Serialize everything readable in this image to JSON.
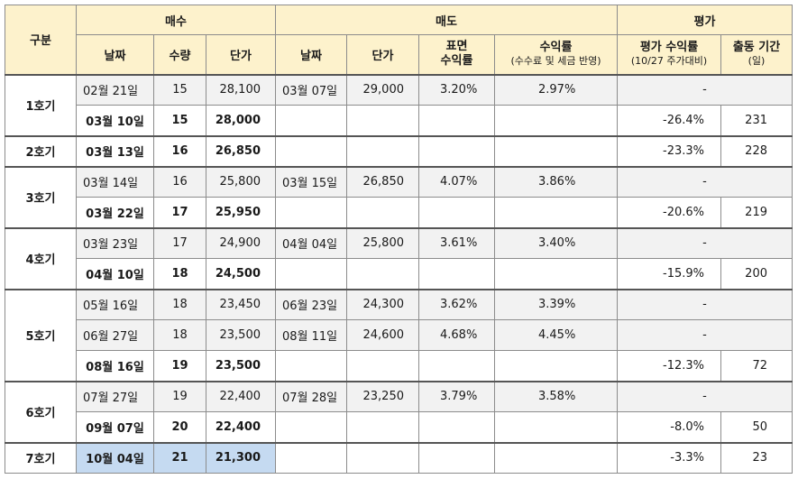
{
  "header": {
    "group": "구분",
    "buy": "매수",
    "sell": "매도",
    "eval": "평가",
    "buy_date": "날짜",
    "buy_qty": "수량",
    "buy_price": "단가",
    "sell_date": "날짜",
    "sell_price": "단가",
    "surface_line1": "표면",
    "surface_line2": "수익률",
    "return_line1": "수익률",
    "return_line2": "(수수료 및 세금 반영)",
    "eval_line1": "평가 수익률",
    "eval_line2": "(10/27 주가대비)",
    "period_line1": "출동 기간",
    "period_line2": "(일)"
  },
  "rows": [
    {
      "label": "1호기",
      "buy_date": "02월 21일",
      "qty": "15",
      "price": "28,100",
      "sell_date": "03월 07일",
      "sell_price": "29,000",
      "surface": "3.20%",
      "ret": "2.97%",
      "eval": "-",
      "period": ""
    },
    {
      "label": "",
      "buy_date": "03월 10일",
      "qty": "15",
      "price": "28,000",
      "sell_date": "",
      "sell_price": "",
      "surface": "",
      "ret": "",
      "eval": "-26.4%",
      "period": "231"
    },
    {
      "label": "2호기",
      "buy_date": "03월 13일",
      "qty": "16",
      "price": "26,850",
      "sell_date": "",
      "sell_price": "",
      "surface": "",
      "ret": "",
      "eval": "-23.3%",
      "period": "228"
    },
    {
      "label": "3호기",
      "buy_date": "03월 14일",
      "qty": "16",
      "price": "25,800",
      "sell_date": "03월 15일",
      "sell_price": "26,850",
      "surface": "4.07%",
      "ret": "3.86%",
      "eval": "-",
      "period": ""
    },
    {
      "label": "",
      "buy_date": "03월 22일",
      "qty": "17",
      "price": "25,950",
      "sell_date": "",
      "sell_price": "",
      "surface": "",
      "ret": "",
      "eval": "-20.6%",
      "period": "219"
    },
    {
      "label": "4호기",
      "buy_date": "03월 23일",
      "qty": "17",
      "price": "24,900",
      "sell_date": "04월 04일",
      "sell_price": "25,800",
      "surface": "3.61%",
      "ret": "3.40%",
      "eval": "-",
      "period": ""
    },
    {
      "label": "",
      "buy_date": "04월 10일",
      "qty": "18",
      "price": "24,500",
      "sell_date": "",
      "sell_price": "",
      "surface": "",
      "ret": "",
      "eval": "-15.9%",
      "period": "200"
    },
    {
      "label": "5호기",
      "buy_date": "05월 16일",
      "qty": "18",
      "price": "23,450",
      "sell_date": "06월 23일",
      "sell_price": "24,300",
      "surface": "3.62%",
      "ret": "3.39%",
      "eval": "-",
      "period": ""
    },
    {
      "label": "",
      "buy_date": "06월 27일",
      "qty": "18",
      "price": "23,500",
      "sell_date": "08월 11일",
      "sell_price": "24,600",
      "surface": "4.68%",
      "ret": "4.45%",
      "eval": "-",
      "period": ""
    },
    {
      "label": "",
      "buy_date": "08월 16일",
      "qty": "19",
      "price": "23,500",
      "sell_date": "",
      "sell_price": "",
      "surface": "",
      "ret": "",
      "eval": "-12.3%",
      "period": "72"
    },
    {
      "label": "6호기",
      "buy_date": "07월 27일",
      "qty": "19",
      "price": "22,400",
      "sell_date": "07월 28일",
      "sell_price": "23,250",
      "surface": "3.79%",
      "ret": "3.58%",
      "eval": "-",
      "period": ""
    },
    {
      "label": "",
      "buy_date": "09월 07일",
      "qty": "20",
      "price": "22,400",
      "sell_date": "",
      "sell_price": "",
      "surface": "",
      "ret": "",
      "eval": "-8.0%",
      "period": "50"
    },
    {
      "label": "7호기",
      "buy_date": "10월 04일",
      "qty": "21",
      "price": "21,300",
      "sell_date": "",
      "sell_price": "",
      "surface": "",
      "ret": "",
      "eval": "-3.3%",
      "period": "23"
    }
  ]
}
